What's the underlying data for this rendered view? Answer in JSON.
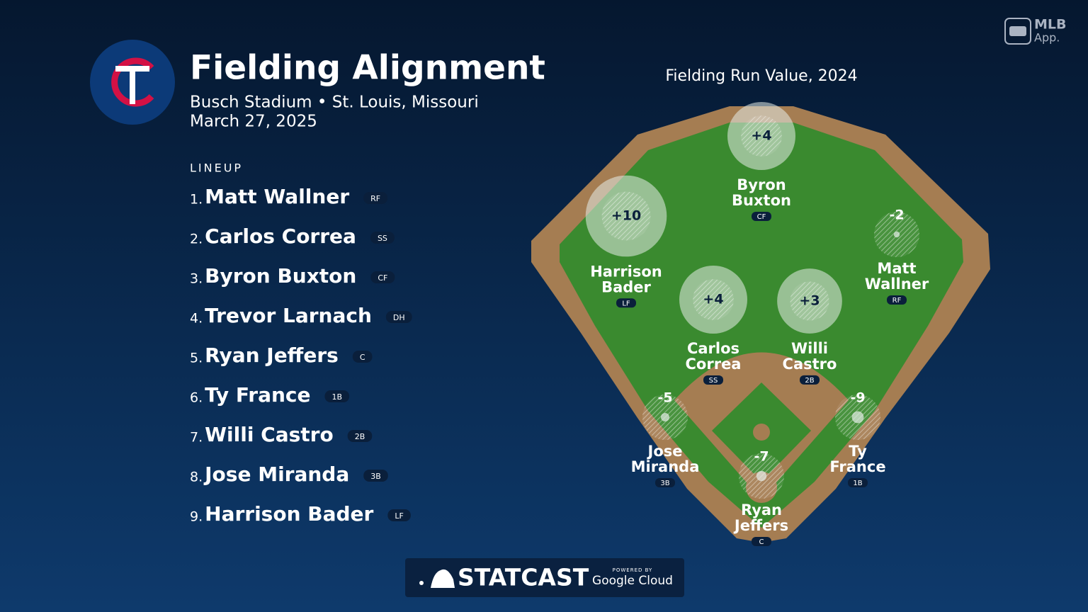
{
  "header": {
    "title": "Fielding Alignment",
    "venue": "Busch Stadium • St. Louis, Missouri",
    "date": "March 27, 2025"
  },
  "brand": {
    "line1": "MLB",
    "line2": "App."
  },
  "lineup": {
    "label": "LINEUP",
    "players": [
      {
        "order": "1.",
        "name": "Matt Wallner",
        "position": "RF"
      },
      {
        "order": "2.",
        "name": "Carlos Correa",
        "position": "SS"
      },
      {
        "order": "3.",
        "name": "Byron Buxton",
        "position": "CF"
      },
      {
        "order": "4.",
        "name": "Trevor Larnach",
        "position": "DH"
      },
      {
        "order": "5.",
        "name": "Ryan Jeffers",
        "position": "C"
      },
      {
        "order": "6.",
        "name": "Ty France",
        "position": "1B"
      },
      {
        "order": "7.",
        "name": "Willi Castro",
        "position": "2B"
      },
      {
        "order": "8.",
        "name": "Jose Miranda",
        "position": "3B"
      },
      {
        "order": "9.",
        "name": "Harrison Bader",
        "position": "LF"
      }
    ]
  },
  "field": {
    "title": "Fielding Run Value, 2024",
    "players": [
      {
        "first": "Byron",
        "last": "Buxton",
        "position": "CF",
        "value": 4,
        "value_label": "+4"
      },
      {
        "first": "Harrison",
        "last": "Bader",
        "position": "LF",
        "value": 10,
        "value_label": "+10"
      },
      {
        "first": "Matt",
        "last": "Wallner",
        "position": "RF",
        "value": -2
      },
      {
        "first": "Carlos",
        "last": "Correa",
        "position": "SS",
        "value": 4,
        "value_label": "+4"
      },
      {
        "first": "Willi",
        "last": "Castro",
        "position": "2B",
        "value": 3,
        "value_label": "+3"
      },
      {
        "first": "Jose",
        "last": "Miranda",
        "position": "3B",
        "value": -5
      },
      {
        "first": "Ty",
        "last": "France",
        "position": "1B",
        "value": -9
      },
      {
        "first": "Ryan",
        "last": "Jeffers",
        "position": "C",
        "value": -7
      }
    ]
  },
  "footer": {
    "brand": "STATCAST",
    "powered": "POWERED BY",
    "partner": "Google Cloud"
  }
}
